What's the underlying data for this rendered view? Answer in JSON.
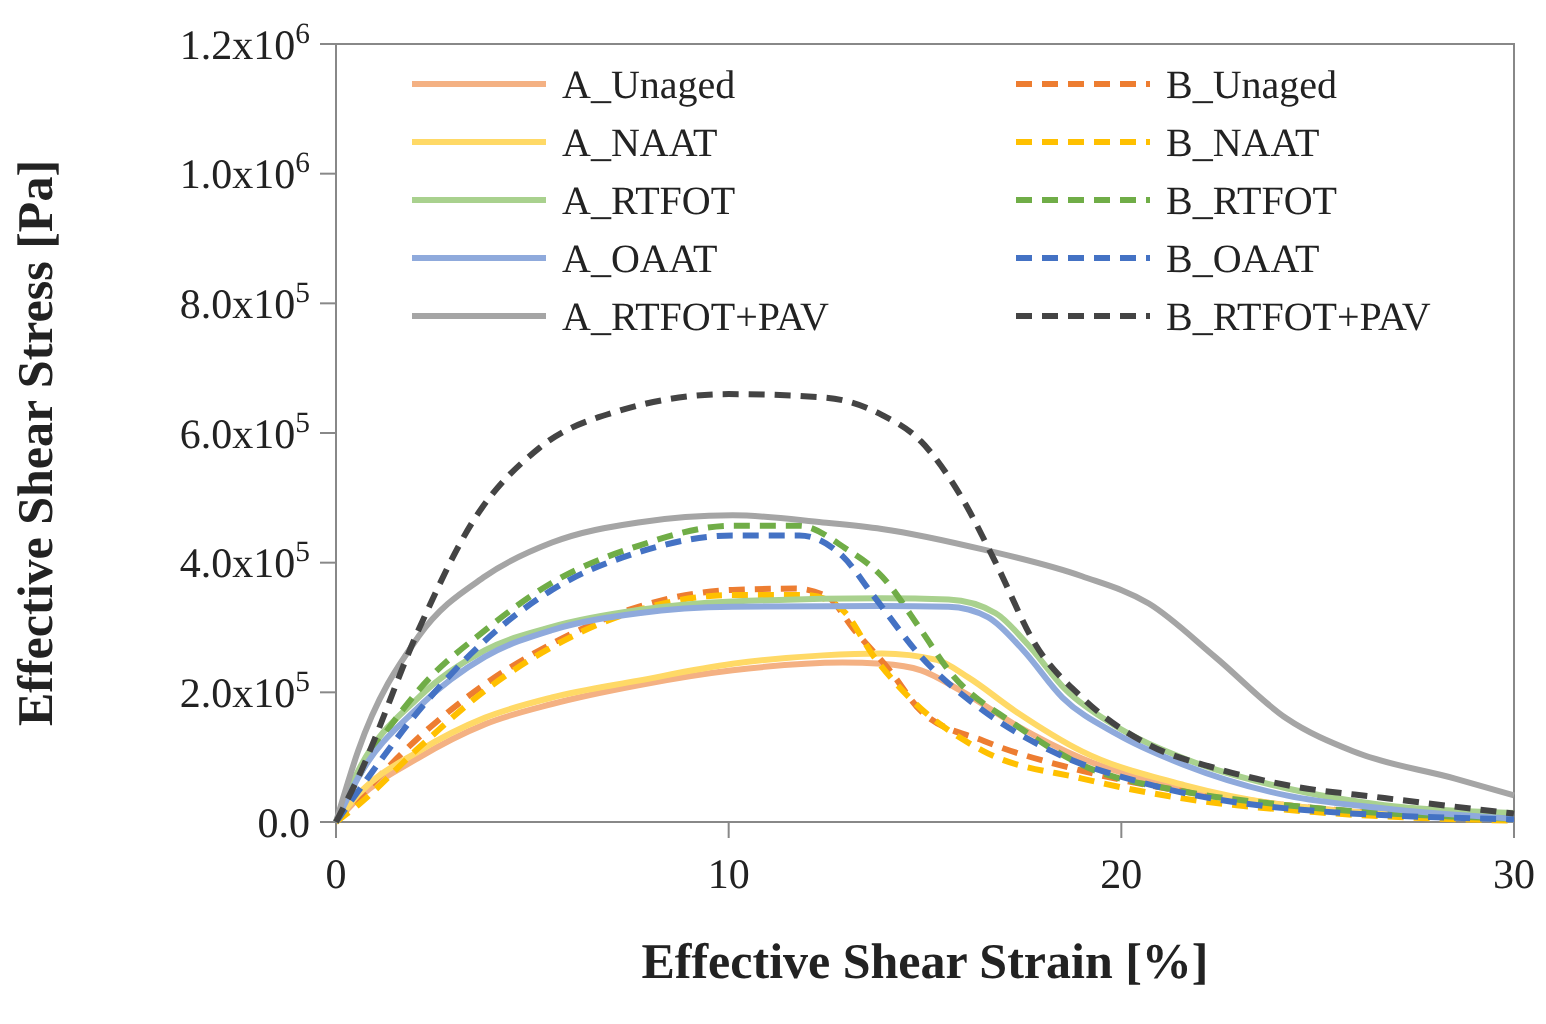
{
  "chart_data": {
    "type": "line",
    "xlabel": "Effective Shear Strain [%]",
    "ylabel": "Effective Shear Stress [Pa]",
    "xlim": [
      0,
      30
    ],
    "xticks": [
      0,
      10,
      20,
      30
    ],
    "ylim": [
      0,
      1200000
    ],
    "yticks": [
      {
        "value": 0,
        "label": "0.0"
      },
      {
        "value": 200000,
        "label": "2.0x10$^{5}$"
      },
      {
        "value": 400000,
        "label": "4.0x10$^{5}$"
      },
      {
        "value": 600000,
        "label": "6.0x10$^{5}$"
      },
      {
        "value": 800000,
        "label": "8.0x10$^{5}$"
      },
      {
        "value": 1000000,
        "label": "1.0x10$^{6}$"
      },
      {
        "value": 1200000,
        "label": "1.2x10$^{6}$"
      }
    ],
    "grid": false,
    "legend": "top",
    "marker": "none",
    "series": [
      {
        "name": "A_Unaged",
        "color": "#f4b183",
        "line_style": "solid",
        "x": [
          0,
          0.56,
          2.1,
          3.8,
          5.5,
          7.7,
          10.1,
          12.9,
          13.9,
          14.9,
          15.9,
          17.3,
          19,
          21.6,
          24.2,
          30
        ],
        "values": [
          0,
          36000,
          99000,
          151000,
          182000,
          211000,
          234000,
          246000,
          244000,
          234000,
          203000,
          150000,
          98000,
          52000,
          26000,
          5000
        ]
      },
      {
        "name": "B_Unaged",
        "color": "#ed7d31",
        "line_style": "dashed",
        "x": [
          0,
          0.56,
          2.1,
          3.8,
          5.5,
          7.7,
          10.1,
          11.7,
          12.5,
          13.2,
          14.1,
          14.9,
          16.5,
          19,
          21.6,
          25,
          30
        ],
        "values": [
          0,
          36000,
          130000,
          213000,
          275000,
          332000,
          358000,
          360000,
          348000,
          296000,
          234000,
          171000,
          125000,
          79000,
          47000,
          21000,
          5000
        ]
      },
      {
        "name": "A_NAAT",
        "color": "#ffd966",
        "line_style": "solid",
        "x": [
          0,
          0.56,
          2.1,
          3.8,
          5.5,
          7.7,
          10.1,
          12.4,
          13.9,
          15.3,
          16.1,
          17.3,
          19,
          21.6,
          24.2,
          30
        ],
        "values": [
          0,
          42000,
          109000,
          161000,
          192000,
          218000,
          244000,
          257000,
          260000,
          250000,
          223000,
          171000,
          109000,
          57000,
          26000,
          4000
        ]
      },
      {
        "name": "B_NAAT",
        "color": "#ffc000",
        "line_style": "dashed",
        "x": [
          0,
          0.56,
          2.1,
          3.8,
          5.5,
          7.7,
          10.1,
          12,
          12.9,
          13.7,
          14.6,
          16.5,
          19,
          21.6,
          25,
          30
        ],
        "values": [
          0,
          26000,
          114000,
          203000,
          270000,
          327000,
          350000,
          350000,
          327000,
          255000,
          192000,
          109000,
          67000,
          36000,
          15000,
          2000
        ]
      },
      {
        "name": "A_RTFOT",
        "color": "#a9d18e",
        "line_style": "solid",
        "x": [
          0,
          0.56,
          2.1,
          3.8,
          5.5,
          7.7,
          10.1,
          13.9,
          15.6,
          16.8,
          17.6,
          18.6,
          19.8,
          21.6,
          24.2,
          26.7,
          30
        ],
        "values": [
          0,
          78000,
          192000,
          265000,
          301000,
          327000,
          340000,
          345000,
          343000,
          322000,
          275000,
          203000,
          150000,
          98000,
          52000,
          26000,
          14000
        ]
      },
      {
        "name": "B_RTFOT",
        "color": "#70ad47",
        "line_style": "dashed",
        "x": [
          0,
          0.56,
          2.1,
          3.8,
          5.5,
          7.7,
          10.1,
          11.8,
          13,
          13.9,
          14.9,
          15.6,
          17.3,
          19,
          21.6,
          24.2,
          30
        ],
        "values": [
          0,
          68000,
          203000,
          296000,
          369000,
          426000,
          457000,
          457000,
          421000,
          379000,
          296000,
          234000,
          150000,
          88000,
          47000,
          26000,
          5000
        ]
      },
      {
        "name": "A_OAAT",
        "color": "#8faadc",
        "line_style": "solid",
        "x": [
          0,
          0.56,
          2.1,
          3.8,
          5.5,
          7.7,
          10.1,
          13.9,
          15.6,
          16.6,
          17.5,
          18.5,
          19.9,
          21.6,
          24.2,
          26.7,
          30
        ],
        "values": [
          0,
          68000,
          177000,
          255000,
          296000,
          322000,
          332000,
          333000,
          332000,
          316000,
          265000,
          192000,
          135000,
          88000,
          41000,
          21000,
          5000
        ]
      },
      {
        "name": "B_OAAT",
        "color": "#4472c4",
        "line_style": "dashed",
        "x": [
          0,
          0.56,
          2.1,
          3.8,
          5.5,
          7.7,
          10.1,
          11.8,
          12.9,
          13.7,
          14.9,
          16.5,
          18.2,
          20.7,
          24.2,
          30
        ],
        "values": [
          0,
          47000,
          171000,
          280000,
          358000,
          416000,
          442000,
          442000,
          410000,
          348000,
          255000,
          171000,
          110000,
          58000,
          21000,
          4000
        ]
      },
      {
        "name": "A_RTFOT+PAV",
        "color": "#a5a5a5",
        "line_style": "solid",
        "x": [
          0,
          0.56,
          2.1,
          3.8,
          5.5,
          7.7,
          10.1,
          12.4,
          13.9,
          16.5,
          19,
          20.7,
          22.4,
          24.2,
          25.9,
          28.5,
          30
        ],
        "values": [
          0,
          109000,
          286000,
          379000,
          431000,
          462000,
          473000,
          462000,
          452000,
          420000,
          379000,
          337000,
          254000,
          160000,
          109000,
          67000,
          41000
        ]
      },
      {
        "name": "B_RTFOT+PAV",
        "color": "#444444",
        "line_style": "dashed",
        "x": [
          0,
          0.56,
          2.1,
          3.47,
          5.18,
          7.2,
          10,
          12.4,
          13.9,
          14.9,
          15.9,
          16.8,
          17.8,
          19,
          20.7,
          22.4,
          24.2,
          26.7,
          30
        ],
        "values": [
          0,
          68000,
          296000,
          462000,
          577000,
          634000,
          660000,
          655000,
          628000,
          587000,
          504000,
          400000,
          275000,
          192000,
          119000,
          83000,
          57000,
          37000,
          13000
        ]
      }
    ]
  }
}
